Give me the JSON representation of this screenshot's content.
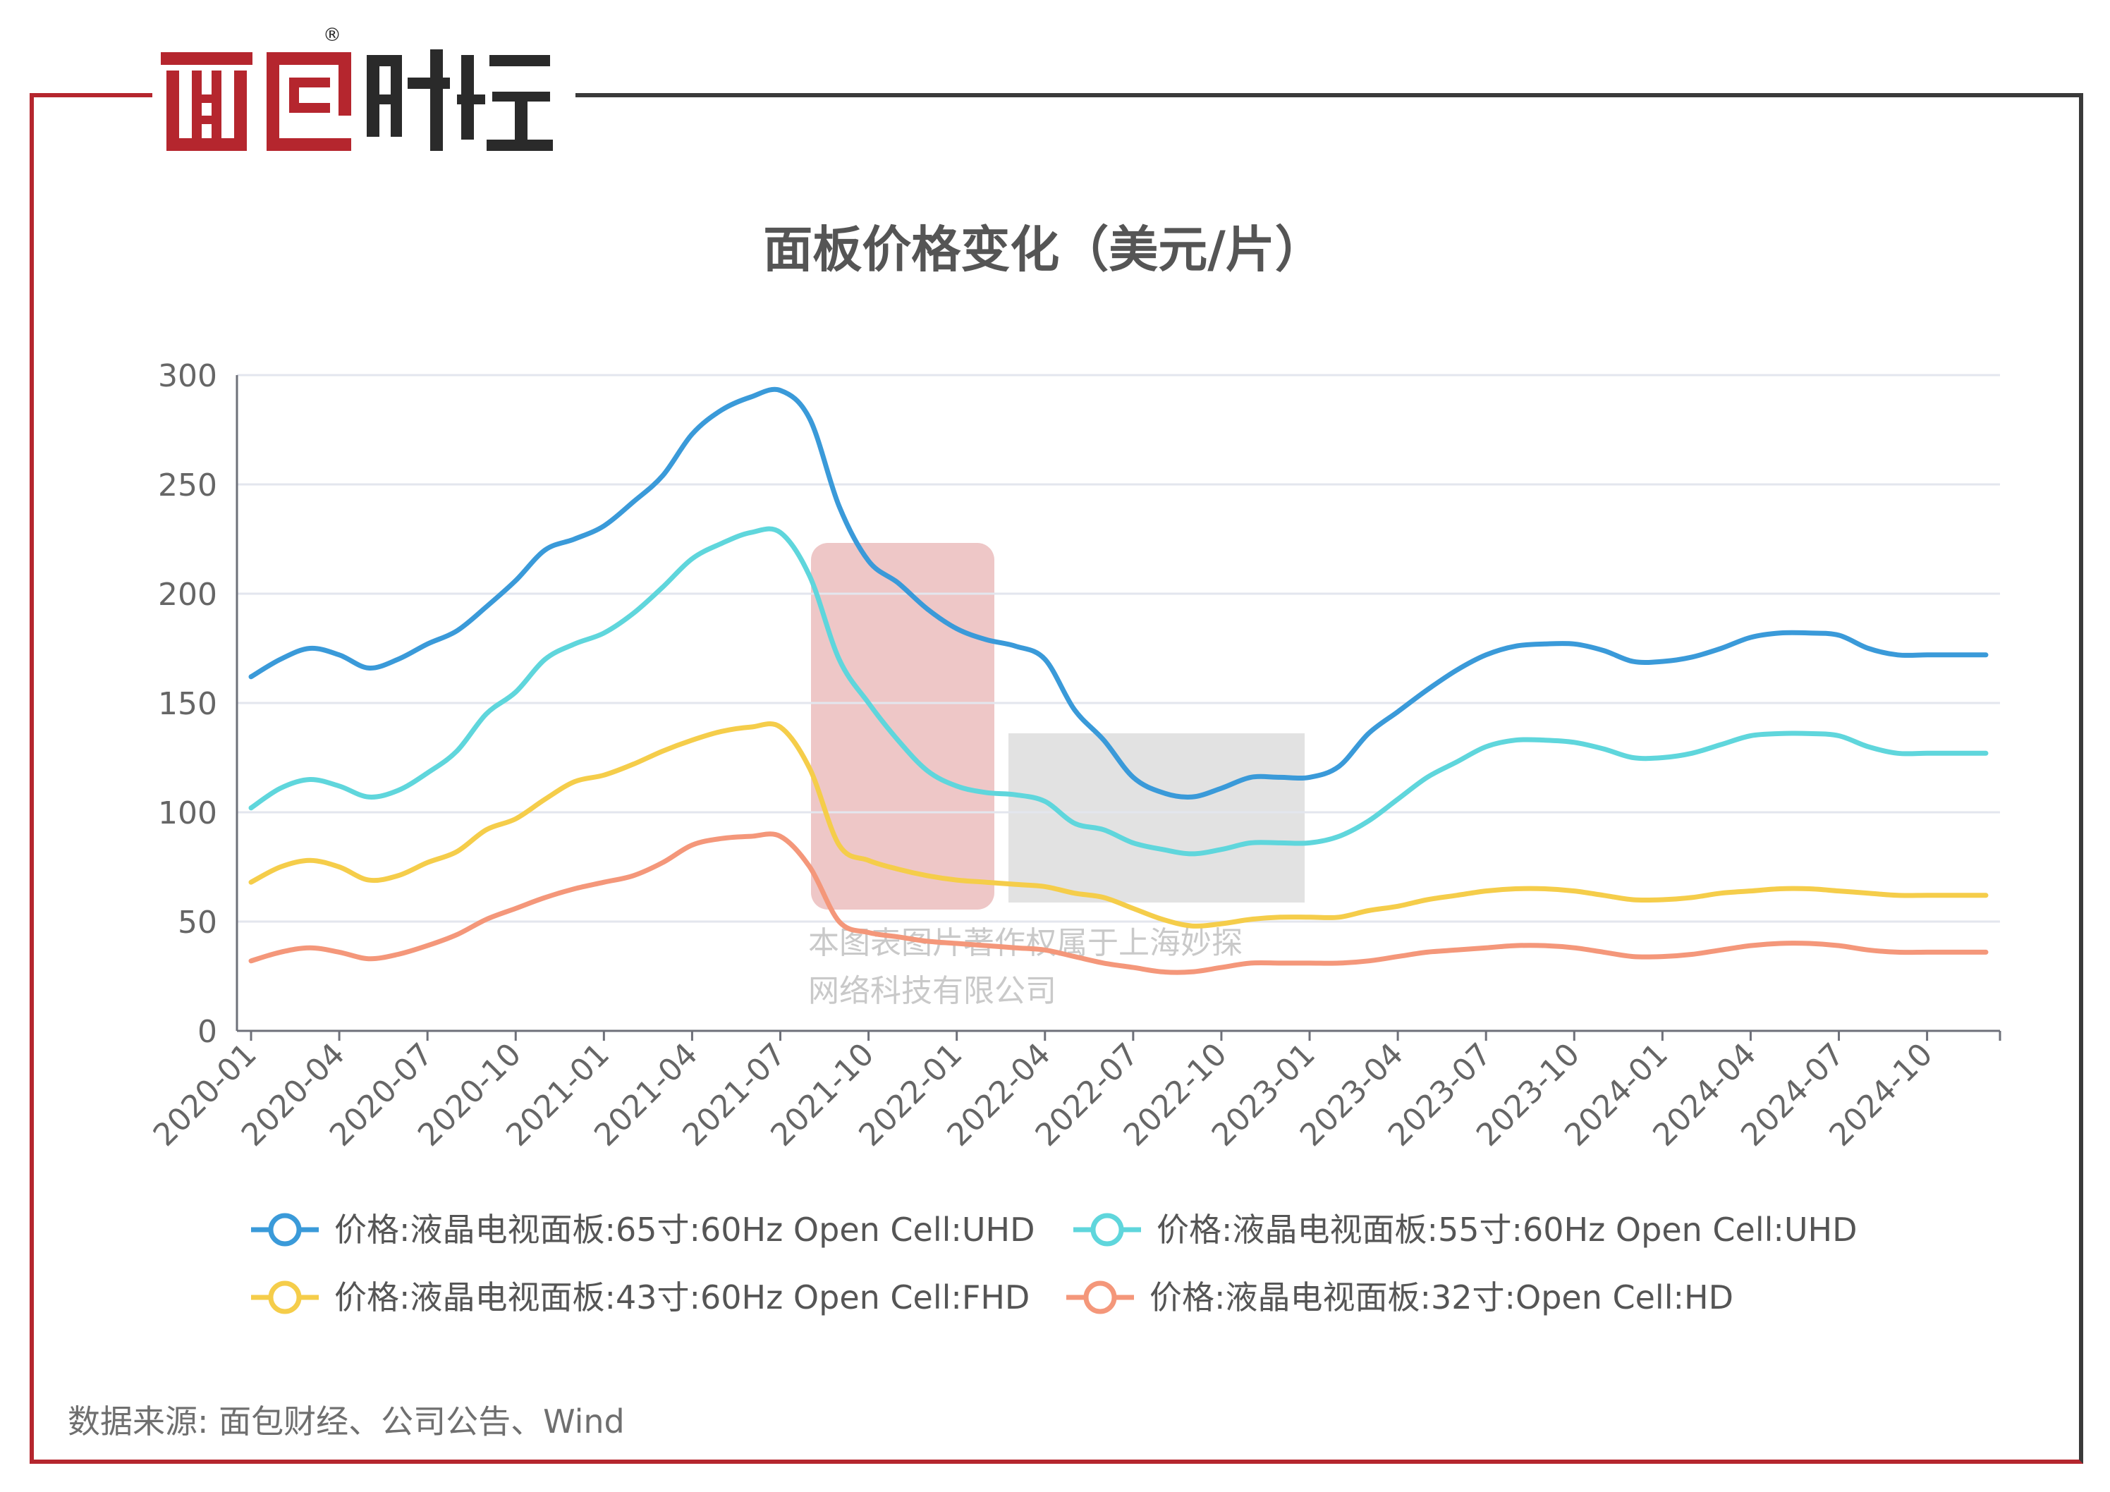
{
  "brand": {
    "logo_text": "面包财经",
    "registered_mark": "®"
  },
  "colors": {
    "frame_red": "#b5262e",
    "frame_dark": "#3a3a3a"
  },
  "source_text": "数据来源: 面包财经、公司公告、Wind",
  "watermark": {
    "line1": "本图表图片著作权属于上海妙探",
    "line2": "网络科技有限公司"
  },
  "chart_data": {
    "type": "line",
    "title": "面板价格变化（美元/片）",
    "xlabel": "",
    "ylabel": "",
    "ylim": [
      0,
      300
    ],
    "yticks": [
      0,
      50,
      100,
      150,
      200,
      250,
      300
    ],
    "grid": true,
    "legend_position": "bottom",
    "x": [
      "2020-01",
      "2020-02",
      "2020-03",
      "2020-04",
      "2020-05",
      "2020-06",
      "2020-07",
      "2020-08",
      "2020-09",
      "2020-10",
      "2020-11",
      "2020-12",
      "2021-01",
      "2021-02",
      "2021-03",
      "2021-04",
      "2021-05",
      "2021-06",
      "2021-07",
      "2021-08",
      "2021-09",
      "2021-10",
      "2021-11",
      "2021-12",
      "2022-01",
      "2022-02",
      "2022-03",
      "2022-04",
      "2022-05",
      "2022-06",
      "2022-07",
      "2022-08",
      "2022-09",
      "2022-10",
      "2022-11",
      "2022-12",
      "2023-01",
      "2023-02",
      "2023-03",
      "2023-04",
      "2023-05",
      "2023-06",
      "2023-07",
      "2023-08",
      "2023-09",
      "2023-10",
      "2023-11",
      "2023-12",
      "2024-01",
      "2024-02",
      "2024-03",
      "2024-04",
      "2024-05",
      "2024-06",
      "2024-07",
      "2024-08",
      "2024-09",
      "2024-10",
      "2024-11",
      "2024-12"
    ],
    "xtick_labels": [
      "2020-01",
      "2020-04",
      "2020-07",
      "2020-10",
      "2021-01",
      "2021-04",
      "2021-07",
      "2021-10",
      "2022-01",
      "2022-04",
      "2022-07",
      "2022-10",
      "2023-01",
      "2023-04",
      "2023-07",
      "2023-10",
      "2024-01",
      "2024-04",
      "2024-07",
      "2024-10"
    ],
    "series": [
      {
        "name": "价格:液晶电视面板:65寸:60Hz Open Cell:UHD",
        "color": "#3a9ad9",
        "values": [
          162,
          170,
          175,
          172,
          166,
          170,
          177,
          183,
          194,
          206,
          220,
          225,
          231,
          242,
          254,
          273,
          284,
          290,
          293,
          280,
          240,
          215,
          205,
          193,
          184,
          179,
          176,
          170,
          147,
          133,
          116,
          109,
          107,
          111,
          116,
          116,
          116,
          121,
          136,
          146,
          156,
          165,
          172,
          176,
          177,
          177,
          174,
          169,
          169,
          171,
          175,
          180,
          182,
          182,
          181,
          175,
          172,
          172,
          172,
          172
        ]
      },
      {
        "name": "价格:液晶电视面板:55寸:60Hz Open Cell:UHD",
        "color": "#5fd6dc",
        "values": [
          102,
          111,
          115,
          112,
          107,
          110,
          118,
          128,
          145,
          155,
          170,
          177,
          182,
          191,
          203,
          216,
          223,
          228,
          228,
          208,
          170,
          150,
          133,
          119,
          112,
          109,
          108,
          105,
          95,
          92,
          86,
          83,
          81,
          83,
          86,
          86,
          86,
          89,
          96,
          106,
          116,
          123,
          130,
          133,
          133,
          132,
          129,
          125,
          125,
          127,
          131,
          135,
          136,
          136,
          135,
          130,
          127,
          127,
          127,
          127
        ]
      },
      {
        "name": "价格:液晶电视面板:43寸:60Hz Open Cell:FHD",
        "color": "#f5cd4a",
        "values": [
          68,
          75,
          78,
          75,
          69,
          71,
          77,
          82,
          92,
          97,
          106,
          114,
          117,
          122,
          128,
          133,
          137,
          139,
          139,
          120,
          85,
          78,
          74,
          71,
          69,
          68,
          67,
          66,
          63,
          61,
          56,
          51,
          48,
          49,
          51,
          52,
          52,
          52,
          55,
          57,
          60,
          62,
          64,
          65,
          65,
          64,
          62,
          60,
          60,
          61,
          63,
          64,
          65,
          65,
          64,
          63,
          62,
          62,
          62,
          62
        ]
      },
      {
        "name": "价格:液晶电视面板:32寸:Open Cell:HD",
        "color": "#f4977a",
        "values": [
          32,
          36,
          38,
          36,
          33,
          35,
          39,
          44,
          51,
          56,
          61,
          65,
          68,
          71,
          77,
          85,
          88,
          89,
          89,
          75,
          50,
          45,
          43,
          41,
          40,
          39,
          38,
          37,
          34,
          31,
          29,
          27,
          27,
          29,
          31,
          31,
          31,
          31,
          32,
          34,
          36,
          37,
          38,
          39,
          39,
          38,
          36,
          34,
          34,
          35,
          37,
          39,
          40,
          40,
          39,
          37,
          36,
          36,
          36,
          36
        ]
      }
    ]
  }
}
